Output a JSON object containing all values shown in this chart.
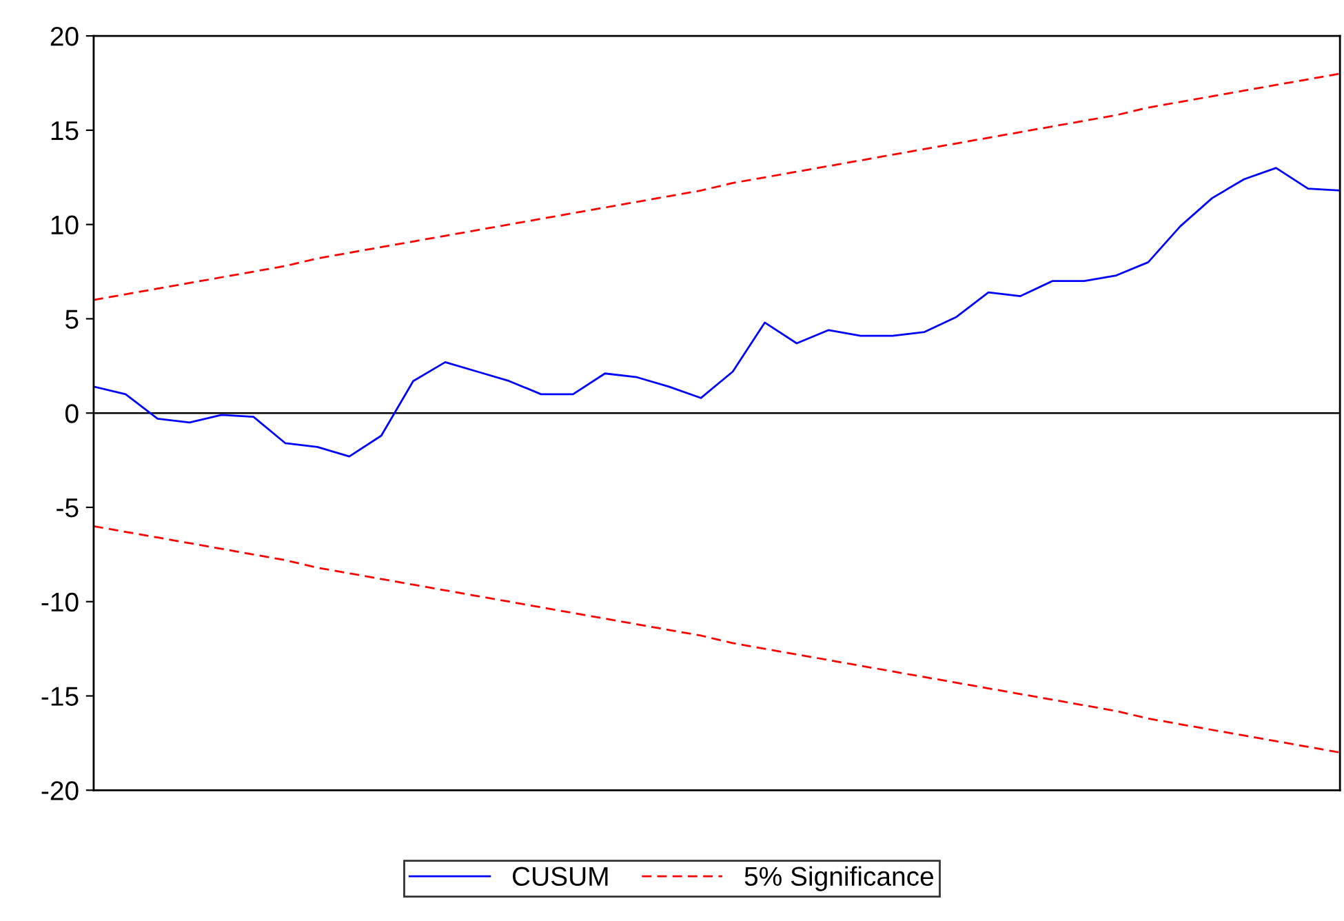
{
  "chart_data": {
    "type": "line",
    "categories": [
      null,
      null,
      null,
      null,
      null,
      null,
      null,
      null,
      null,
      null,
      null,
      null,
      null,
      null,
      null,
      null,
      null,
      null,
      null,
      null,
      null,
      null,
      null,
      null,
      null,
      null,
      null,
      null,
      null,
      null,
      null,
      null,
      null,
      null,
      null,
      null,
      null,
      null,
      null,
      null
    ],
    "series": [
      {
        "name": "CUSUM",
        "color": "#0000ff",
        "line_style": "solid",
        "values": [
          1.4,
          1.0,
          -0.3,
          -0.5,
          -0.1,
          -0.2,
          -1.6,
          -1.8,
          -2.3,
          -1.2,
          1.7,
          2.7,
          2.2,
          1.7,
          1.0,
          1.0,
          2.1,
          1.9,
          1.4,
          0.8,
          2.2,
          4.8,
          3.7,
          4.4,
          4.1,
          4.1,
          4.3,
          5.1,
          6.4,
          6.2,
          7.0,
          7.0,
          7.3,
          8.0,
          9.9,
          11.4,
          12.4,
          13.0,
          11.9,
          11.8
        ]
      },
      {
        "name": "5% Significance",
        "color": "#ff0000",
        "line_style": "dashed",
        "values": [
          6.0,
          6.3,
          6.6,
          6.9,
          7.2,
          7.5,
          7.8,
          8.2,
          8.5,
          8.8,
          9.1,
          9.4,
          9.7,
          10.0,
          10.3,
          10.6,
          10.9,
          11.2,
          11.5,
          11.8,
          12.2,
          12.5,
          12.8,
          13.1,
          13.4,
          13.7,
          14.0,
          14.3,
          14.6,
          14.9,
          15.2,
          15.5,
          15.8,
          16.2,
          16.5,
          16.8,
          17.1,
          17.4,
          17.7,
          18.0
        ]
      },
      {
        "color": "#ff0000",
        "line_style": "dashed",
        "values": [
          -6.0,
          -6.3,
          -6.6,
          -6.9,
          -7.2,
          -7.5,
          -7.8,
          -8.2,
          -8.5,
          -8.8,
          -9.1,
          -9.4,
          -9.7,
          -10.0,
          -10.3,
          -10.6,
          -10.9,
          -11.2,
          -11.5,
          -11.8,
          -12.2,
          -12.5,
          -12.8,
          -13.1,
          -13.4,
          -13.7,
          -14.0,
          -14.3,
          -14.6,
          -14.9,
          -15.2,
          -15.5,
          -15.8,
          -16.2,
          -16.5,
          -16.8,
          -17.1,
          -17.4,
          -17.7,
          -18.0
        ]
      }
    ],
    "ylim": [
      -20,
      20
    ],
    "yticks": [
      -20,
      -15,
      -10,
      -5,
      0,
      5,
      10,
      15,
      20
    ],
    "ref_lines": [
      {
        "axis": "y",
        "value": 0,
        "color": "#000000",
        "line_style": "solid"
      }
    ],
    "tick_labels": "y",
    "grid": false,
    "legend": "bottom",
    "marker": "none"
  }
}
